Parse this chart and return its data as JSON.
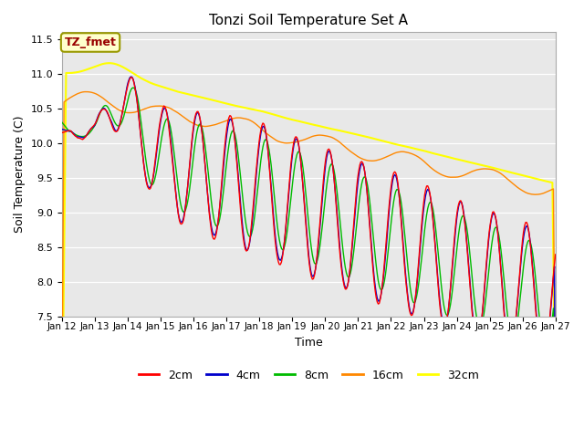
{
  "title": "Tonzi Soil Temperature Set A",
  "xlabel": "Time",
  "ylabel": "Soil Temperature (C)",
  "ylim": [
    7.5,
    11.6
  ],
  "annotation": "TZ_fmet",
  "bg_color": "#e8e8e8",
  "series": {
    "2cm": {
      "color": "#ff0000",
      "lw": 1.0
    },
    "4cm": {
      "color": "#0000cc",
      "lw": 1.0
    },
    "8cm": {
      "color": "#00bb00",
      "lw": 1.0
    },
    "16cm": {
      "color": "#ff8800",
      "lw": 1.0
    },
    "32cm": {
      "color": "#ffff00",
      "lw": 1.5
    }
  },
  "xtick_labels": [
    "Jan 12",
    "Jan 13",
    "Jan 14",
    "Jan 15",
    "Jan 16",
    "Jan 17",
    "Jan 18",
    "Jan 19",
    "Jan 20",
    "Jan 21",
    "Jan 22",
    "Jan 23",
    "Jan 24",
    "Jan 25",
    "Jan 26",
    "Jan 27"
  ],
  "ytick_vals": [
    7.5,
    8.0,
    8.5,
    9.0,
    9.5,
    10.0,
    10.5,
    11.0,
    11.5
  ]
}
